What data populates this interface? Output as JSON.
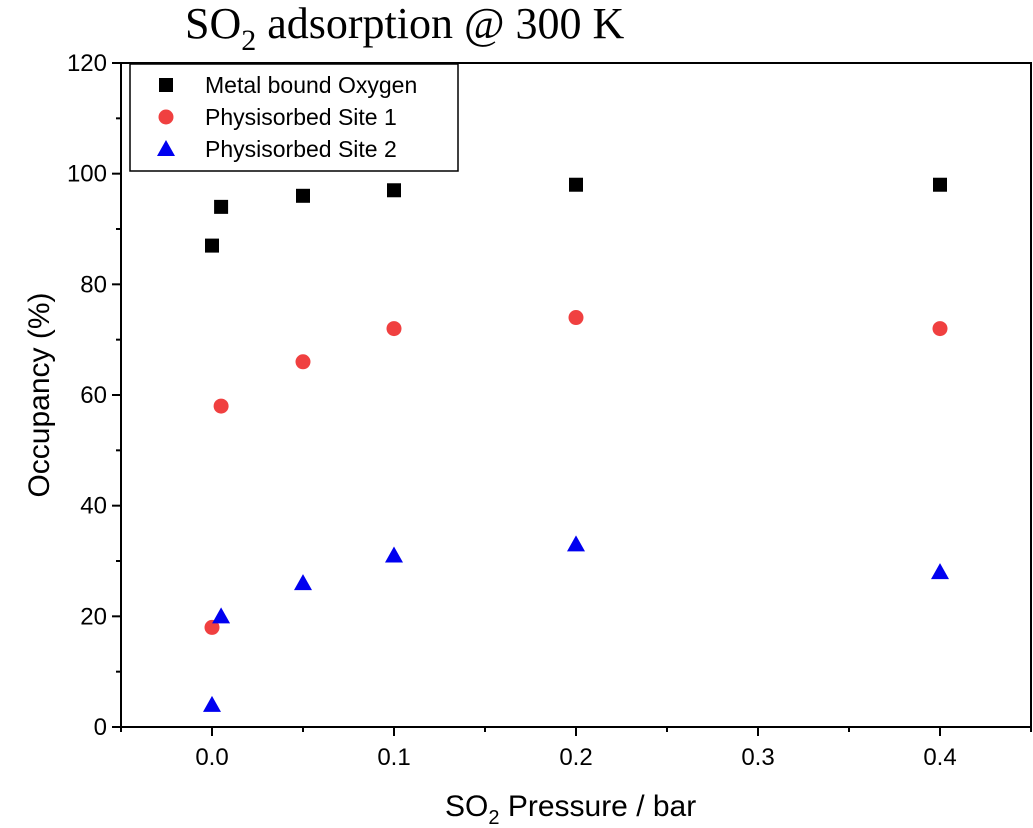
{
  "chart_data": {
    "type": "scatter",
    "title": {
      "main": "SO",
      "sub": "2",
      "rest": " adsorption @ 300 K"
    },
    "xlabel": {
      "main": "SO",
      "sub": "2",
      "rest": " Pressure / bar"
    },
    "ylabel": "Occupancy (%)",
    "xlim": [
      -0.05,
      0.45
    ],
    "ylim": [
      0,
      120
    ],
    "x_ticks": [
      0.0,
      0.1,
      0.2,
      0.3,
      0.4
    ],
    "x_tick_labels": [
      "0.0",
      "0.1",
      "0.2",
      "0.3",
      "0.4"
    ],
    "x_minor_ticks": [
      -0.05,
      0.05,
      0.15,
      0.25,
      0.35,
      0.45
    ],
    "y_ticks": [
      0,
      20,
      40,
      60,
      80,
      100,
      120
    ],
    "y_tick_labels": [
      "0",
      "20",
      "40",
      "60",
      "80",
      "100",
      "120"
    ],
    "y_minor_ticks": [
      10,
      30,
      50,
      70,
      90,
      110
    ],
    "legend_position": "top-left",
    "series": [
      {
        "name": "Metal bound Oxygen",
        "marker": "square",
        "color": "#000000",
        "points": [
          {
            "x": 0.0,
            "y": 87
          },
          {
            "x": 0.005,
            "y": 94
          },
          {
            "x": 0.05,
            "y": 96
          },
          {
            "x": 0.1,
            "y": 97
          },
          {
            "x": 0.2,
            "y": 98
          },
          {
            "x": 0.4,
            "y": 98
          }
        ]
      },
      {
        "name": "Physisorbed Site 1",
        "marker": "circle",
        "color": "#f04040",
        "points": [
          {
            "x": 0.0,
            "y": 18
          },
          {
            "x": 0.005,
            "y": 58
          },
          {
            "x": 0.05,
            "y": 66
          },
          {
            "x": 0.1,
            "y": 72
          },
          {
            "x": 0.2,
            "y": 74
          },
          {
            "x": 0.4,
            "y": 72
          }
        ]
      },
      {
        "name": "Physisorbed Site 2",
        "marker": "triangle",
        "color": "#0000f0",
        "points": [
          {
            "x": 0.0,
            "y": 4
          },
          {
            "x": 0.005,
            "y": 20
          },
          {
            "x": 0.05,
            "y": 26
          },
          {
            "x": 0.1,
            "y": 31
          },
          {
            "x": 0.2,
            "y": 33
          },
          {
            "x": 0.4,
            "y": 28
          }
        ]
      }
    ]
  }
}
